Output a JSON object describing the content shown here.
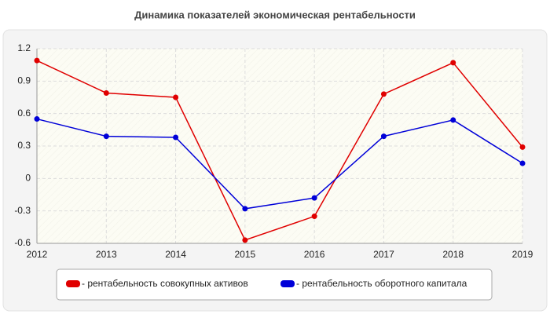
{
  "chart_data": {
    "type": "line",
    "title": "Динамика показателей экономическая рентабельности",
    "x": [
      2012,
      2013,
      2014,
      2015,
      2016,
      2017,
      2018,
      2019
    ],
    "series": [
      {
        "name": "- рентабельность совокупных активов",
        "color": "#e00000",
        "values": [
          1.09,
          0.79,
          0.75,
          -0.57,
          -0.35,
          0.78,
          1.07,
          0.29
        ]
      },
      {
        "name": "- рентабельность оборотного капитала",
        "color": "#0000d8",
        "values": [
          0.55,
          0.39,
          0.38,
          -0.28,
          -0.18,
          0.39,
          0.54,
          0.14
        ]
      }
    ],
    "xlim": [
      2012,
      2019
    ],
    "xticks": [
      2012,
      2013,
      2014,
      2015,
      2016,
      2017,
      2018,
      2019
    ],
    "ylim": [
      -0.6,
      1.2
    ],
    "yticks": [
      -0.6,
      -0.3,
      0,
      0.3,
      0.6,
      0.9,
      1.2
    ],
    "grid": true,
    "legend": "bottom"
  }
}
